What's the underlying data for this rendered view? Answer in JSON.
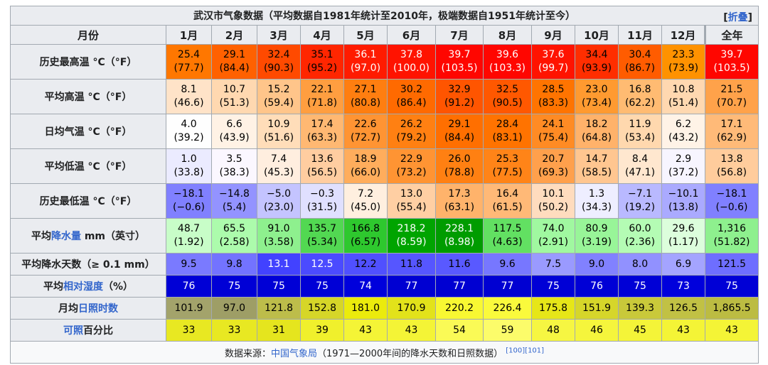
{
  "title": "武汉市气象数据（平均数据自1981年统计至2010年，极端数据自1951年统计至今）",
  "toggle": {
    "open": "[",
    "label": "折叠",
    "close": "]"
  },
  "header": {
    "label": "月份",
    "months": [
      "1月",
      "2月",
      "3月",
      "4月",
      "5月",
      "6月",
      "7月",
      "8月",
      "9月",
      "10月",
      "11月",
      "12月"
    ],
    "year": "全年"
  },
  "rows": [
    {
      "key": "record_high",
      "label": "历史最高温 °C（°F）",
      "values": [
        "25.4",
        "29.1",
        "32.4",
        "35.1",
        "36.1",
        "37.8",
        "39.7",
        "39.6",
        "37.6",
        "34.4",
        "30.4",
        "23.3",
        "39.7"
      ],
      "sub": [
        "(77.7)",
        "(84.4)",
        "(90.3)",
        "(95.2)",
        "(97.0)",
        "(100.0)",
        "(103.5)",
        "(103.3)",
        "(99.7)",
        "(93.9)",
        "(86.7)",
        "(73.9)",
        "(103.5)"
      ],
      "bg": [
        "#ff7700",
        "#ff6100",
        "#ff4a00",
        "#ff2600",
        "#ff1b00",
        "#ff1300",
        "#ff0600",
        "#ff0600",
        "#ff1300",
        "#ff2e00",
        "#ff5c00",
        "#ff9200",
        "#ff0600"
      ],
      "fg": [
        "#000000",
        "#000000",
        "#000000",
        "#000000",
        "#ffffff",
        "#ffffff",
        "#ffffff",
        "#ffffff",
        "#ffffff",
        "#000000",
        "#000000",
        "#000000",
        "#ffffff"
      ]
    },
    {
      "key": "avg_high",
      "label": "平均高温 °C（°F）",
      "values": [
        "8.1",
        "10.7",
        "15.2",
        "22.1",
        "27.1",
        "30.2",
        "32.9",
        "32.5",
        "28.5",
        "23.0",
        "16.8",
        "10.8",
        "21.5"
      ],
      "sub": [
        "(46.6)",
        "(51.3)",
        "(59.4)",
        "(71.8)",
        "(80.8)",
        "(86.4)",
        "(91.2)",
        "(90.5)",
        "(83.3)",
        "(73.4)",
        "(62.2)",
        "(51.4)",
        "(70.7)"
      ],
      "bg": [
        "#ffe3c8",
        "#ffd8b0",
        "#ffc58a",
        "#ff9e40",
        "#ff7e10",
        "#ff6a00",
        "#ff5500",
        "#ff5800",
        "#ff7400",
        "#ff9a30",
        "#ffbb72",
        "#ffd8b0",
        "#ffa24a"
      ],
      "fg": [
        "#000000",
        "#000000",
        "#000000",
        "#000000",
        "#000000",
        "#000000",
        "#000000",
        "#000000",
        "#000000",
        "#000000",
        "#000000",
        "#000000",
        "#000000"
      ]
    },
    {
      "key": "daily_mean",
      "label": "日均气温 °C（°F）",
      "values": [
        "4.0",
        "6.6",
        "10.9",
        "17.4",
        "22.6",
        "26.2",
        "29.1",
        "28.4",
        "24.1",
        "18.2",
        "11.9",
        "6.2",
        "17.1"
      ],
      "sub": [
        "(39.2)",
        "(43.9)",
        "(51.6)",
        "(63.3)",
        "(72.7)",
        "(79.2)",
        "(84.4)",
        "(83.1)",
        "(75.4)",
        "(64.8)",
        "(53.4)",
        "(43.2)",
        "(62.9)"
      ],
      "bg": [
        "#fefefe",
        "#fff2e5",
        "#ffddb9",
        "#ffb872",
        "#ff9433",
        "#ff8012",
        "#ff6f00",
        "#ff7300",
        "#ff8b24",
        "#ffb26a",
        "#ffd8ae",
        "#fff3e7",
        "#ffba78"
      ],
      "fg": [
        "#000000",
        "#000000",
        "#000000",
        "#000000",
        "#000000",
        "#000000",
        "#000000",
        "#000000",
        "#000000",
        "#000000",
        "#000000",
        "#000000",
        "#000000"
      ]
    },
    {
      "key": "avg_low",
      "label": "平均低温 °C（°F）",
      "values": [
        "1.0",
        "3.5",
        "7.4",
        "13.6",
        "18.9",
        "22.9",
        "26.0",
        "25.3",
        "20.7",
        "14.7",
        "8.4",
        "2.9",
        "13.8"
      ],
      "sub": [
        "(33.8)",
        "(38.3)",
        "(45.3)",
        "(56.5)",
        "(66.0)",
        "(73.2)",
        "(78.8)",
        "(77.5)",
        "(69.3)",
        "(58.5)",
        "(47.1)",
        "(37.2)",
        "(56.8)"
      ],
      "bg": [
        "#ebebff",
        "#fbf7ff",
        "#ffeedf",
        "#ffcda0",
        "#ffad5c",
        "#ff9433",
        "#ff8012",
        "#ff8418",
        "#ffa04c",
        "#ffc690",
        "#ffe7cf",
        "#f7f5ff",
        "#ffcc9c"
      ],
      "fg": [
        "#000000",
        "#000000",
        "#000000",
        "#000000",
        "#000000",
        "#000000",
        "#000000",
        "#000000",
        "#000000",
        "#000000",
        "#000000",
        "#000000",
        "#000000"
      ]
    },
    {
      "key": "record_low",
      "label": "历史最低温 °C（°F）",
      "values": [
        "−18.1",
        "−14.8",
        "−5.0",
        "−0.3",
        "7.2",
        "13.0",
        "17.3",
        "16.4",
        "10.1",
        "1.3",
        "−7.1",
        "−10.1",
        "−18.1"
      ],
      "sub": [
        "(−0.6)",
        "(5.4)",
        "(23.0)",
        "(31.5)",
        "(45.0)",
        "(55.4)",
        "(63.1)",
        "(61.5)",
        "(50.2)",
        "(34.3)",
        "(19.2)",
        "(13.8)",
        "(−0.6)"
      ],
      "bg": [
        "#8080ff",
        "#9393ff",
        "#c4c4ff",
        "#e0e0ff",
        "#ffefdf",
        "#ffcfa3",
        "#ffb36b",
        "#ffb977",
        "#ffdcbe",
        "#eeeeff",
        "#b9b9ff",
        "#aaaaff",
        "#8080ff"
      ],
      "fg": [
        "#000000",
        "#000000",
        "#000000",
        "#000000",
        "#000000",
        "#000000",
        "#000000",
        "#000000",
        "#000000",
        "#000000",
        "#000000",
        "#000000",
        "#000000"
      ]
    },
    {
      "key": "precip",
      "label_pre": "平均",
      "label_link": "降水量",
      "label_post": " mm（英寸）",
      "values": [
        "48.7",
        "65.5",
        "91.0",
        "135.7",
        "166.8",
        "218.2",
        "228.1",
        "117.5",
        "74.0",
        "80.9",
        "60.0",
        "29.6",
        "1,316"
      ],
      "sub": [
        "(1.92)",
        "(2.58)",
        "(3.58)",
        "(5.34)",
        "(6.57)",
        "(8.59)",
        "(8.98)",
        "(4.63)",
        "(2.91)",
        "(3.19)",
        "(2.36)",
        "(1.17)",
        "(51.82)"
      ],
      "bg": [
        "#c8fdc8",
        "#acfbac",
        "#8ef08e",
        "#52d852",
        "#2ec82e",
        "#00a400",
        "#009c00",
        "#62e062",
        "#a0f8a0",
        "#98f598",
        "#b4fcb4",
        "#dcfedc",
        "#8ef08e"
      ],
      "fg": [
        "#000000",
        "#000000",
        "#000000",
        "#000000",
        "#000000",
        "#ffffff",
        "#ffffff",
        "#000000",
        "#000000",
        "#000000",
        "#000000",
        "#000000",
        "#000000"
      ]
    },
    {
      "key": "precip_days",
      "label": "平均降水天数（≥ 0.1 mm）",
      "values": [
        "9.5",
        "9.8",
        "13.1",
        "12.5",
        "12.2",
        "11.8",
        "11.6",
        "9.6",
        "7.5",
        "9.0",
        "8.0",
        "6.9",
        "121.5"
      ],
      "bg": [
        "#7a7aff",
        "#7373ff",
        "#4242ff",
        "#4b4bff",
        "#5050ff",
        "#5656ff",
        "#5959ff",
        "#7777ff",
        "#9a9aff",
        "#8181ff",
        "#9191ff",
        "#a4a4ff",
        "#6e6eff"
      ],
      "fg": [
        "#000000",
        "#000000",
        "#ffffff",
        "#ffffff",
        "#000000",
        "#000000",
        "#000000",
        "#000000",
        "#000000",
        "#000000",
        "#000000",
        "#000000",
        "#000000"
      ]
    },
    {
      "key": "humidity",
      "label_pre": "平均",
      "label_link": "相对湿度",
      "label_post": "（%）",
      "values": [
        "76",
        "75",
        "75",
        "75",
        "74",
        "77",
        "77",
        "77",
        "75",
        "76",
        "75",
        "73",
        "75"
      ],
      "bg": [
        "#0000d6",
        "#0000d6",
        "#0000d6",
        "#0000d6",
        "#0000dc",
        "#0000d2",
        "#0000d2",
        "#0000d2",
        "#0000d6",
        "#0000d6",
        "#0000d6",
        "#0000dc",
        "#0000d6"
      ],
      "fg": [
        "#ffffff",
        "#ffffff",
        "#ffffff",
        "#ffffff",
        "#ffffff",
        "#ffffff",
        "#ffffff",
        "#ffffff",
        "#ffffff",
        "#ffffff",
        "#ffffff",
        "#ffffff",
        "#ffffff"
      ]
    },
    {
      "key": "sunshine",
      "label_pre": "月均",
      "label_link": "日照时数",
      "label_post": "",
      "values": [
        "101.9",
        "97.0",
        "121.8",
        "152.8",
        "181.0",
        "170.9",
        "220.2",
        "226.4",
        "175.8",
        "151.9",
        "139.3",
        "126.5",
        "1,865.5"
      ],
      "bg": [
        "#a3a36b",
        "#9e9e66",
        "#bdbd4a",
        "#d6d628",
        "#ebeb0c",
        "#e2e21a",
        "#f8f832",
        "#fafa3c",
        "#e6e618",
        "#d6d62a",
        "#c9c93a",
        "#c1c144",
        "#bcbc42"
      ],
      "fg": [
        "#000000",
        "#000000",
        "#000000",
        "#000000",
        "#000000",
        "#000000",
        "#000000",
        "#000000",
        "#000000",
        "#000000",
        "#000000",
        "#000000",
        "#000000"
      ]
    },
    {
      "key": "sunshine_pct",
      "label_pre": "",
      "label_link": "可照",
      "label_post": "百分比",
      "values": [
        "33",
        "33",
        "31",
        "39",
        "43",
        "43",
        "54",
        "59",
        "48",
        "46",
        "45",
        "43",
        "43"
      ],
      "bg": [
        "#e8e822",
        "#e8e822",
        "#e5e51e",
        "#f0f02c",
        "#f4f436",
        "#f4f436",
        "#fafa56",
        "#fcfc6a",
        "#f6f642",
        "#f5f53c",
        "#f4f438",
        "#f4f436",
        "#f4f436"
      ],
      "fg": [
        "#000000",
        "#000000",
        "#000000",
        "#000000",
        "#000000",
        "#000000",
        "#000000",
        "#000000",
        "#000000",
        "#000000",
        "#000000",
        "#000000",
        "#000000"
      ]
    }
  ],
  "footer": {
    "prefix": "数据来源：",
    "link": "中国气象局",
    "suffix": "（1971—2000年间的降水天数和日照数据）",
    "refs": "[100][101]"
  }
}
